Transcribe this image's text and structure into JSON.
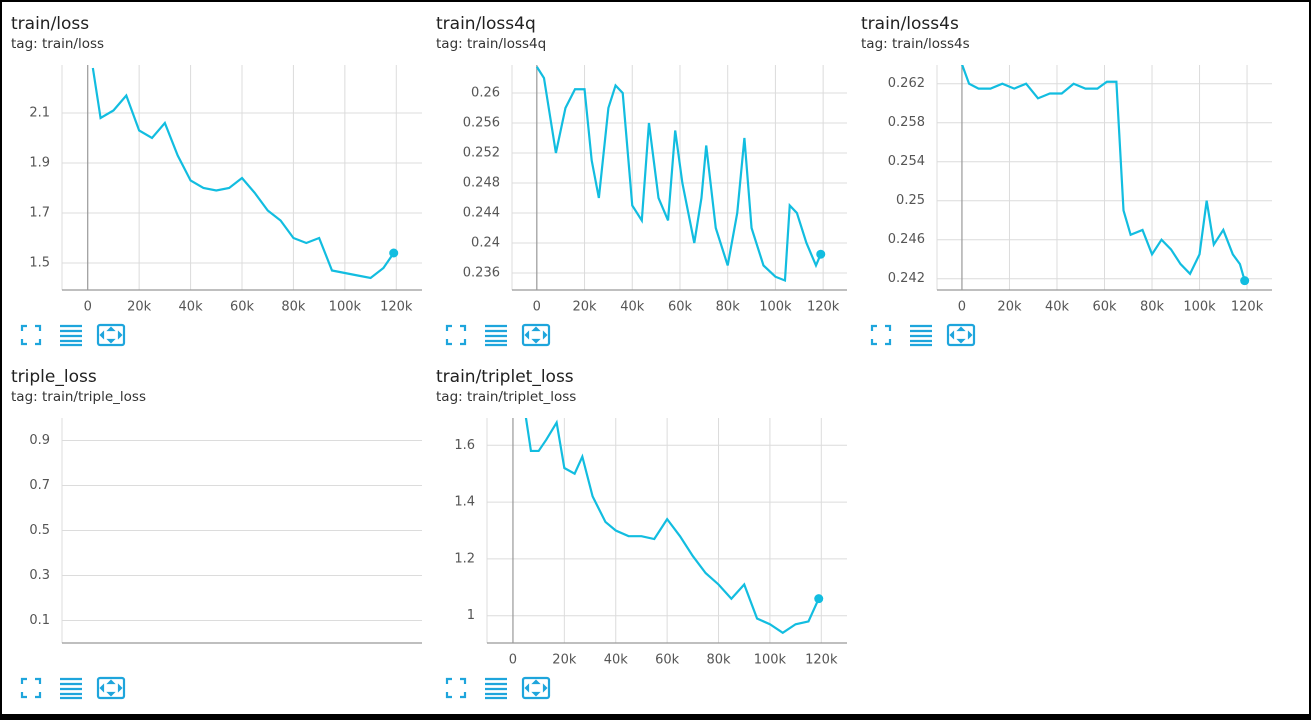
{
  "chart_data": [
    {
      "type": "line",
      "title": "train/loss",
      "subtitle": "tag: train/loss",
      "x": [
        2000,
        5000,
        10000,
        15000,
        20000,
        25000,
        30000,
        35000,
        40000,
        45000,
        50000,
        55000,
        60000,
        65000,
        70000,
        75000,
        80000,
        85000,
        90000,
        95000,
        100000,
        105000,
        110000,
        115000,
        119000
      ],
      "series": [
        {
          "name": "train/loss",
          "color": "#12bde0",
          "values": [
            2.28,
            2.08,
            2.11,
            2.17,
            2.03,
            2.0,
            2.06,
            1.93,
            1.83,
            1.8,
            1.79,
            1.8,
            1.84,
            1.78,
            1.71,
            1.67,
            1.6,
            1.58,
            1.6,
            1.47,
            1.46,
            1.45,
            1.44,
            1.48,
            1.54
          ]
        }
      ],
      "xlim": [
        -10000,
        130000
      ],
      "ylim": [
        1.392,
        2.292
      ],
      "xticks": [
        0,
        {
          "value": 20000,
          "label": "20k"
        },
        {
          "value": 40000,
          "label": "40k"
        },
        {
          "value": 60000,
          "label": "60k"
        },
        {
          "value": 80000,
          "label": "80k"
        },
        {
          "value": 100000,
          "label": "100k"
        },
        {
          "value": 120000,
          "label": "120k"
        }
      ],
      "yticks": [
        1.5,
        1.7,
        1.9,
        2.1
      ],
      "grid": true
    },
    {
      "type": "line",
      "title": "train/loss4q",
      "subtitle": "tag: train/loss4q",
      "x": [
        0,
        3000,
        8000,
        12000,
        16000,
        20000,
        23000,
        26000,
        30000,
        33000,
        36000,
        40000,
        44000,
        47000,
        51000,
        55000,
        58000,
        61000,
        66000,
        69000,
        71000,
        75000,
        80000,
        84000,
        87000,
        90000,
        95000,
        100000,
        104000,
        106000,
        109000,
        113000,
        117000,
        119000
      ],
      "series": [
        {
          "name": "train/loss4q",
          "color": "#12bde0",
          "values": [
            0.2635,
            0.262,
            0.252,
            0.258,
            0.2605,
            0.2605,
            0.251,
            0.246,
            0.258,
            0.261,
            0.26,
            0.245,
            0.243,
            0.256,
            0.246,
            0.243,
            0.255,
            0.248,
            0.24,
            0.246,
            0.253,
            0.242,
            0.237,
            0.244,
            0.254,
            0.242,
            0.237,
            0.2355,
            0.235,
            0.245,
            0.244,
            0.24,
            0.237,
            0.2385
          ]
        }
      ],
      "xlim": [
        -10400,
        130000
      ],
      "ylim": [
        0.23373,
        0.26373
      ],
      "xticks": [
        0,
        {
          "value": 20000,
          "label": "20k"
        },
        {
          "value": 40000,
          "label": "40k"
        },
        {
          "value": 60000,
          "label": "60k"
        },
        {
          "value": 80000,
          "label": "80k"
        },
        {
          "value": 100000,
          "label": "100k"
        },
        {
          "value": 120000,
          "label": "120k"
        }
      ],
      "yticks": [
        0.236,
        0.24,
        0.244,
        0.248,
        0.252,
        0.256,
        0.26
      ],
      "grid": true
    },
    {
      "type": "line",
      "title": "train/loss4s",
      "subtitle": "tag: train/loss4s",
      "x": [
        0,
        3000,
        7000,
        12000,
        17000,
        22000,
        27000,
        32000,
        37000,
        42000,
        47000,
        52000,
        57000,
        61000,
        65000,
        68000,
        71000,
        76000,
        80000,
        84000,
        88000,
        92000,
        96000,
        100000,
        103000,
        106000,
        110000,
        114000,
        117000,
        119000
      ],
      "series": [
        {
          "name": "train/loss4s",
          "color": "#12bde0",
          "values": [
            0.264,
            0.262,
            0.2615,
            0.2615,
            0.262,
            0.2615,
            0.262,
            0.2605,
            0.261,
            0.261,
            0.262,
            0.2615,
            0.2615,
            0.2622,
            0.2622,
            0.249,
            0.2465,
            0.247,
            0.2445,
            0.246,
            0.245,
            0.2435,
            0.2425,
            0.2445,
            0.25,
            0.2455,
            0.247,
            0.2445,
            0.2435,
            0.2418
          ]
        }
      ],
      "xlim": [
        -10500,
        130500
      ],
      "ylim": [
        0.24084,
        0.26392
      ],
      "xticks": [
        0,
        {
          "value": 20000,
          "label": "20k"
        },
        {
          "value": 40000,
          "label": "40k"
        },
        {
          "value": 60000,
          "label": "60k"
        },
        {
          "value": 80000,
          "label": "80k"
        },
        {
          "value": 100000,
          "label": "100k"
        },
        {
          "value": 120000,
          "label": "120k"
        }
      ],
      "yticks": [
        0.242,
        0.246,
        0.25,
        0.254,
        0.258,
        0.262
      ],
      "grid": true
    },
    {
      "type": "line",
      "title": "triple_loss",
      "subtitle": "tag: train/triple_loss",
      "ylim": [
        0,
        1
      ],
      "yticks": [
        0.1,
        0.3,
        0.5,
        0.7,
        0.9
      ],
      "grid": true
    },
    {
      "type": "line",
      "title": "train/triplet_loss",
      "subtitle": "tag: train/triplet_loss",
      "x": [
        5000,
        7000,
        10000,
        13000,
        17000,
        20000,
        24000,
        27000,
        31000,
        36000,
        40000,
        45000,
        50000,
        55000,
        60000,
        65000,
        70000,
        75000,
        80000,
        85000,
        90000,
        95000,
        100000,
        105000,
        110000,
        115000,
        119000
      ],
      "series": [
        {
          "name": "train/triplet_loss",
          "color": "#12bde0",
          "values": [
            1.7,
            1.58,
            1.58,
            1.62,
            1.68,
            1.52,
            1.5,
            1.56,
            1.42,
            1.33,
            1.3,
            1.28,
            1.28,
            1.27,
            1.34,
            1.28,
            1.21,
            1.15,
            1.11,
            1.06,
            1.11,
            0.99,
            0.97,
            0.94,
            0.97,
            0.98,
            1.06
          ]
        }
      ],
      "xlim": [
        -10100,
        130000
      ],
      "ylim": [
        0.904,
        1.696
      ],
      "xticks": [
        0,
        {
          "value": 20000,
          "label": "20k"
        },
        {
          "value": 40000,
          "label": "40k"
        },
        {
          "value": 60000,
          "label": "60k"
        },
        {
          "value": 80000,
          "label": "80k"
        },
        {
          "value": 100000,
          "label": "100k"
        },
        {
          "value": 120000,
          "label": "120k"
        }
      ],
      "yticks": [
        1,
        1.2,
        1.4,
        1.6
      ],
      "grid": true
    }
  ]
}
